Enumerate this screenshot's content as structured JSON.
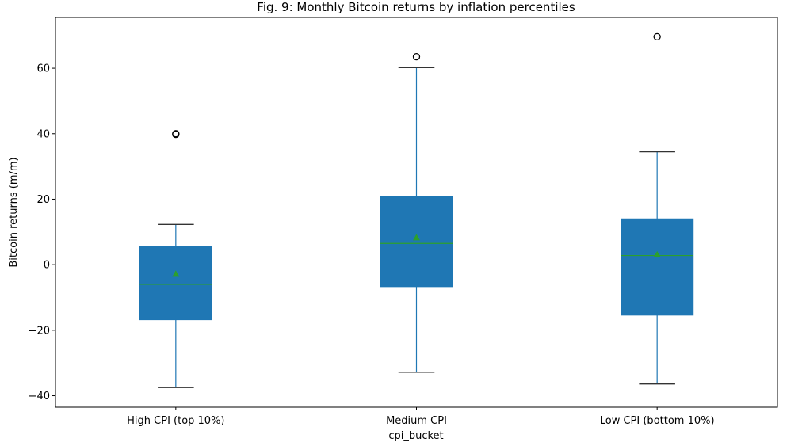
{
  "chart_data": {
    "type": "box",
    "title": "Fig. 9: Monthly Bitcoin returns by inflation percentiles",
    "xlabel": "cpi_bucket",
    "ylabel": "Bitcoin returns (m/m)",
    "ylim": [
      -43.5,
      75.5
    ],
    "yticks": [
      -40,
      -20,
      0,
      20,
      40,
      60
    ],
    "categories": [
      "High CPI (top 10%)",
      "Medium CPI",
      "Low CPI (bottom 10%)"
    ],
    "boxes": [
      {
        "whisker_low": -37.5,
        "q1": -16.8,
        "median": -6.0,
        "q3": 5.6,
        "whisker_high": 12.3,
        "mean": -2.8,
        "outliers": [
          39.8,
          40.0
        ]
      },
      {
        "whisker_low": -32.8,
        "q1": -6.7,
        "median": 6.5,
        "q3": 20.8,
        "whisker_high": 60.2,
        "mean": 8.3,
        "outliers": [
          63.5
        ]
      },
      {
        "whisker_low": -36.4,
        "q1": -15.4,
        "median": 2.8,
        "q3": 14.0,
        "whisker_high": 34.5,
        "mean": 3.1,
        "outliers": [
          69.6
        ]
      }
    ],
    "colors": {
      "box_fill": "#1f77b4",
      "median_line": "#2ca02c",
      "mean_marker": "#2ca02c",
      "whisker": "#1f77b4",
      "cap": "#333333",
      "outlier_edge": "#000000"
    },
    "grid": false,
    "legend": "none"
  }
}
